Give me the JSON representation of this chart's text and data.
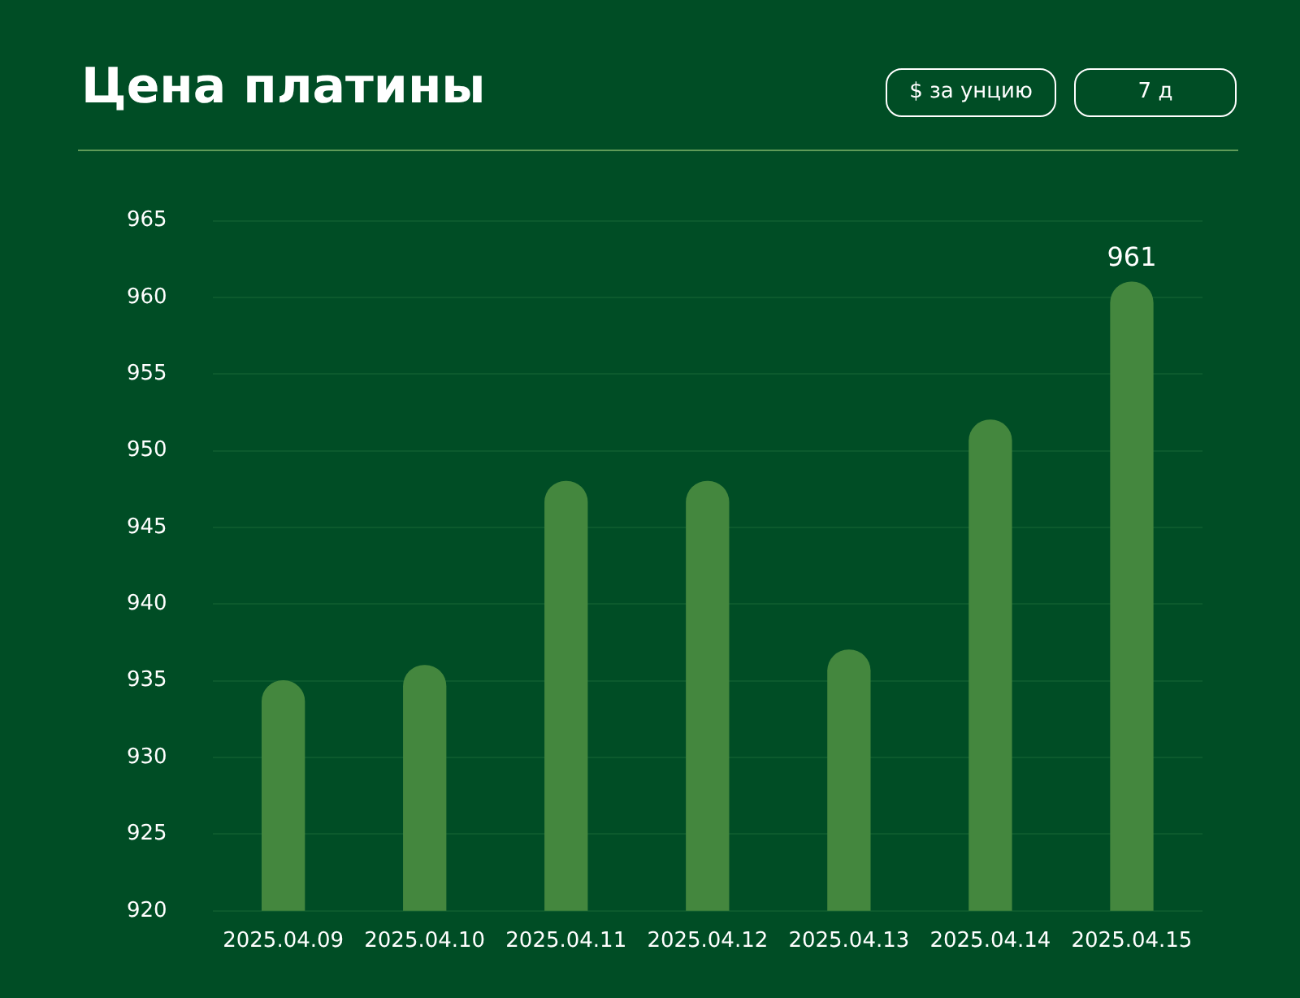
{
  "chart_data": {
    "type": "bar",
    "title": "Цена платины",
    "annotations": [
      "$ за унцию",
      "7 д"
    ],
    "categories": [
      "2025.04.09",
      "2025.04.10",
      "2025.04.11",
      "2025.04.12",
      "2025.04.13",
      "2025.04.14",
      "2025.04.15"
    ],
    "values": [
      935,
      936,
      948,
      948,
      937,
      952,
      961
    ],
    "value_labels": [
      null,
      null,
      null,
      null,
      null,
      null,
      "961"
    ],
    "color": "#44873e",
    "ylim": [
      920,
      965
    ],
    "yticks": [
      920,
      925,
      930,
      935,
      940,
      945,
      950,
      955,
      960,
      965
    ],
    "grid": "y"
  }
}
